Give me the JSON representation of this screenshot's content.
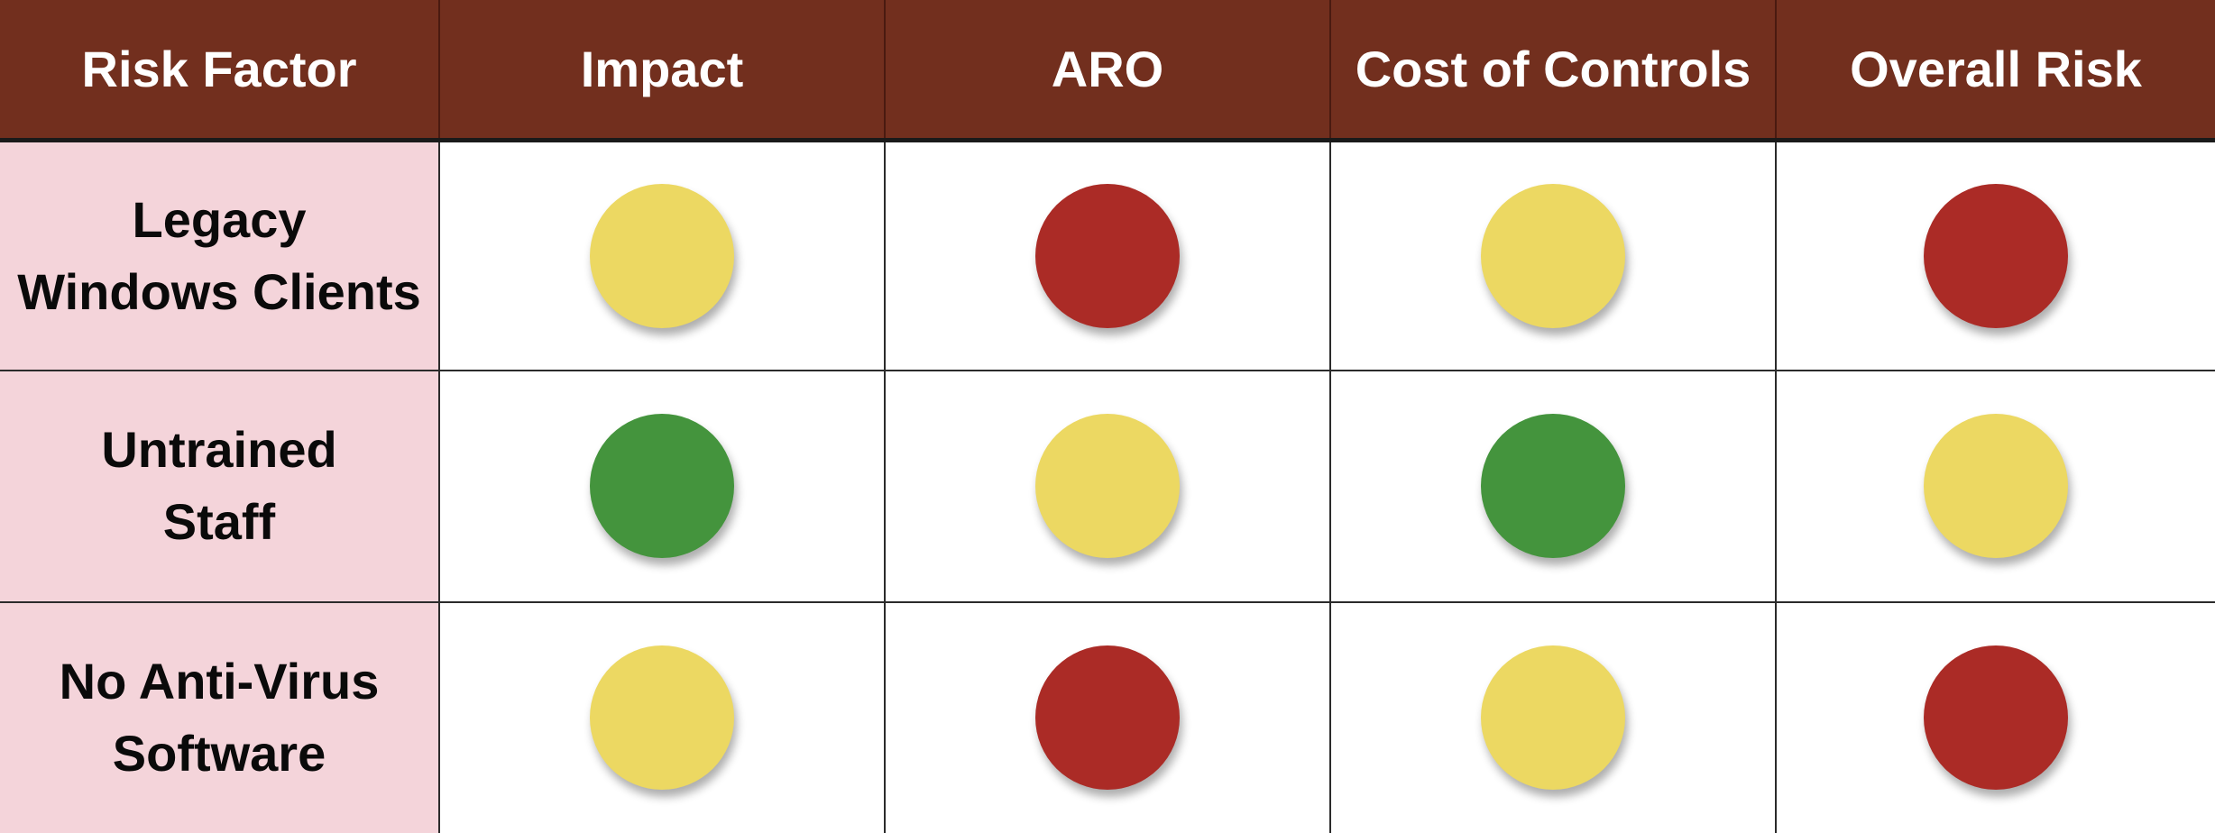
{
  "colors": {
    "header_bg": "#722f1e",
    "header_text": "#ffffff",
    "factor_bg": "#f4d4da",
    "red": "#ab2b26",
    "yellow": "#ecd862",
    "green": "#44943d"
  },
  "headers": [
    "Risk Factor",
    "Impact",
    "ARO",
    "Cost of Controls",
    "Overall Risk"
  ],
  "rows": [
    {
      "factor": [
        "Legacy",
        "Windows Clients"
      ],
      "ratings": [
        "yellow",
        "red",
        "yellow",
        "red"
      ]
    },
    {
      "factor": [
        "Untrained",
        "Staff"
      ],
      "ratings": [
        "green",
        "yellow",
        "green",
        "yellow"
      ]
    },
    {
      "factor": [
        "No Anti-Virus",
        "Software"
      ],
      "ratings": [
        "yellow",
        "red",
        "yellow",
        "red"
      ]
    }
  ]
}
